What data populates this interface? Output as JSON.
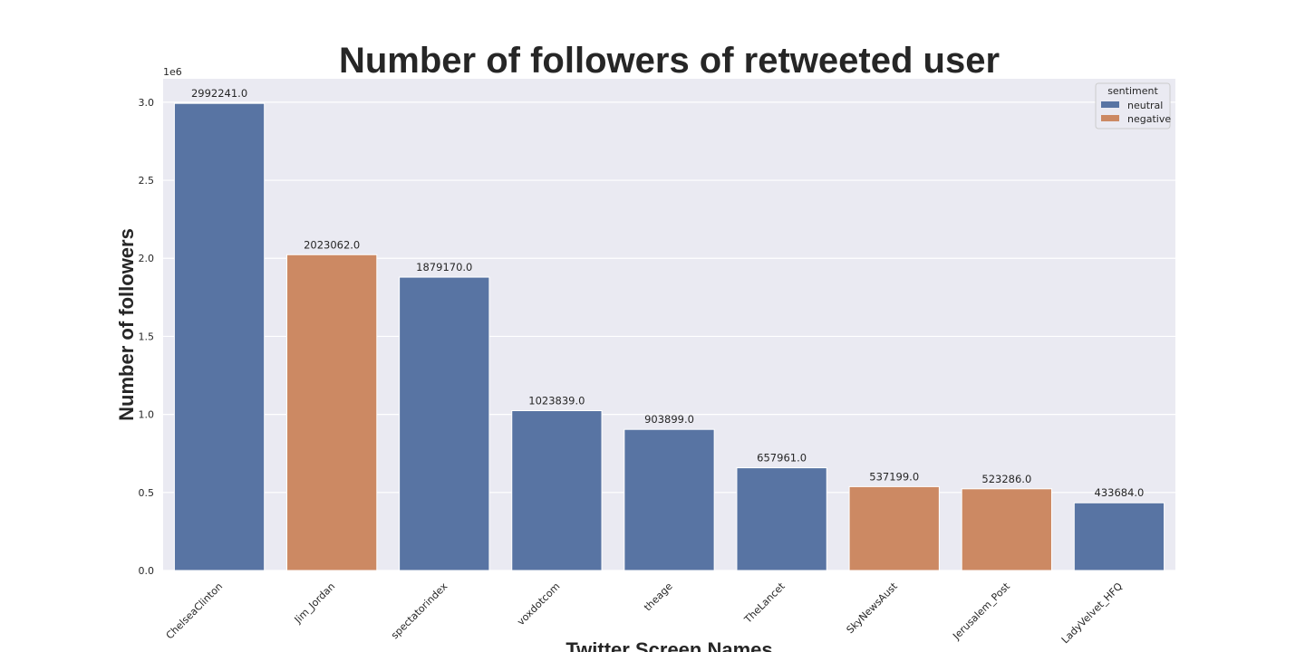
{
  "chart_data": {
    "type": "bar",
    "title": "Number of followers of retweeted user",
    "xlabel": "Twitter Screen Names",
    "ylabel": "Number of followers",
    "y_offset_label": "1e6",
    "ylim": [
      0,
      3150000
    ],
    "yticks": [
      0,
      500000,
      1000000,
      1500000,
      2000000,
      2500000,
      3000000
    ],
    "ytick_labels": [
      "0.0",
      "0.5",
      "1.0",
      "1.5",
      "2.0",
      "2.5",
      "3.0"
    ],
    "grid": true,
    "legend_placement": "top-right",
    "legend_title": "sentiment",
    "legend": [
      {
        "name": "neutral",
        "color": "#5874a3"
      },
      {
        "name": "negative",
        "color": "#cc8963"
      }
    ],
    "categories": [
      "ChelseaClinton",
      "Jim_Jordan",
      "spectatorindex",
      "voxdotcom",
      "theage",
      "TheLancet",
      "SkyNewsAust",
      "Jerusalem_Post",
      "LadyVelvet_HFQ"
    ],
    "values": [
      2992241,
      2023062,
      1879170,
      1023839,
      903899,
      657961,
      537199,
      523286,
      433684
    ],
    "value_labels": [
      "2992241.0",
      "2023062.0",
      "1879170.0",
      "1023839.0",
      "903899.0",
      "657961.0",
      "537199.0",
      "523286.0",
      "433684.0"
    ],
    "sentiment": [
      "neutral",
      "negative",
      "neutral",
      "neutral",
      "neutral",
      "neutral",
      "negative",
      "negative",
      "neutral"
    ]
  }
}
